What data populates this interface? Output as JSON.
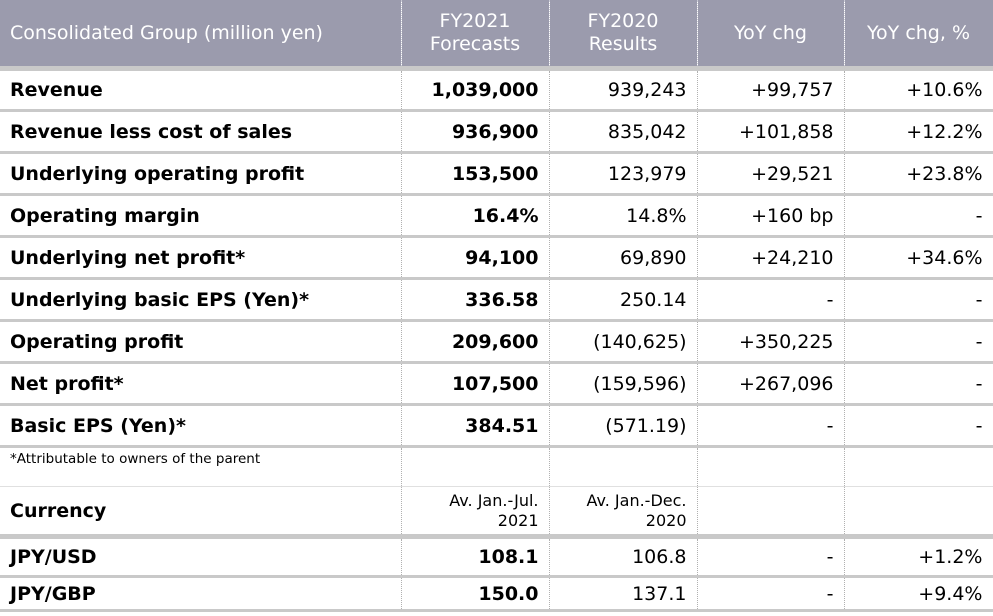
{
  "header": {
    "col1": "Consolidated Group (million yen)",
    "col2_line1": "FY2021",
    "col2_line2": "Forecasts",
    "col3_line1": "FY2020",
    "col3_line2": "Results",
    "col4": "YoY chg",
    "col5": "YoY chg, %"
  },
  "rows": [
    {
      "label": "Revenue",
      "forecast": "1,039,000",
      "result": "939,243",
      "yoy": "+99,757",
      "yoy_pct": "+10.6%"
    },
    {
      "label": "Revenue less cost of sales",
      "forecast": "936,900",
      "result": "835,042",
      "yoy": "+101,858",
      "yoy_pct": "+12.2%"
    },
    {
      "label": "Underlying operating profit",
      "forecast": "153,500",
      "result": "123,979",
      "yoy": "+29,521",
      "yoy_pct": "+23.8%"
    },
    {
      "label": "Operating margin",
      "forecast": "16.4%",
      "result": "14.8%",
      "yoy": "+160 bp",
      "yoy_pct": "-"
    },
    {
      "label": "Underlying net profit*",
      "forecast": "94,100",
      "result": "69,890",
      "yoy": "+24,210",
      "yoy_pct": "+34.6%"
    },
    {
      "label": "Underlying basic EPS (Yen)*",
      "forecast": "336.58",
      "result": "250.14",
      "yoy": "-",
      "yoy_pct": "-"
    },
    {
      "label": "Operating profit",
      "forecast": "209,600",
      "result": "(140,625)",
      "yoy": "+350,225",
      "yoy_pct": "-"
    },
    {
      "label": "Net profit*",
      "forecast": "107,500",
      "result": "(159,596)",
      "yoy": "+267,096",
      "yoy_pct": "-"
    },
    {
      "label": "Basic EPS (Yen)*",
      "forecast": "384.51",
      "result": "(571.19)",
      "yoy": "-",
      "yoy_pct": "-"
    }
  ],
  "footnote": "*Attributable to owners of the parent",
  "currency": {
    "label": "Currency",
    "forecast_period_line1": "Av. Jan.-Jul.",
    "forecast_period_line2": "2021",
    "result_period_line1": "Av. Jan.-Dec.",
    "result_period_line2": "2020",
    "rows": [
      {
        "label": "JPY/USD",
        "forecast": "108.1",
        "result": "106.8",
        "yoy": "-",
        "yoy_pct": "+1.2%"
      },
      {
        "label": "JPY/GBP",
        "forecast": "150.0",
        "result": "137.1",
        "yoy": "-",
        "yoy_pct": "+9.4%"
      }
    ]
  },
  "colors": {
    "header_bg": "#9b9bad",
    "header_text": "#ffffff",
    "row_separator": "#c9c9c9"
  }
}
